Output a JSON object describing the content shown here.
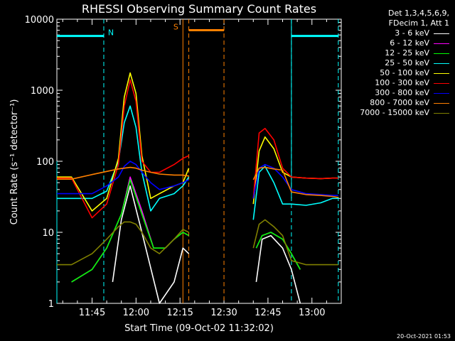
{
  "chart_data": {
    "type": "line",
    "title": "RHESSI Observing Summary Count Rates",
    "xlabel": "Start Time (09-Oct-02 11:32:02)",
    "ylabel": "Count Rate (s⁻¹ detector⁻¹)",
    "y_scale": "log",
    "ylim": [
      1,
      10000
    ],
    "xlim": [
      "11:33",
      "13:10"
    ],
    "x_tick_labels": [
      "11:45",
      "12:00",
      "12:15",
      "12:30",
      "12:45",
      "13:00"
    ],
    "y_tick_labels": [
      "1",
      "10",
      "100",
      "1000",
      "10000"
    ],
    "legend_title": "Det 1,3,4,5,6,9,\nFDecim 1, Att 1",
    "legend_position": "right",
    "series": [
      {
        "name": "3 - 6 keV",
        "color": "#ffffff",
        "x": [
          "11:33",
          "11:42",
          "11:52",
          "11:55",
          "11:58",
          "12:02",
          "12:08",
          "12:13",
          "12:16",
          "12:18",
          "12:19",
          "12:38",
          "12:41",
          "12:43",
          "12:46",
          "12:50",
          "12:53",
          "12:56",
          "13:10"
        ],
        "y": [
          null,
          null,
          2,
          15,
          45,
          10,
          1,
          2,
          6,
          5,
          null,
          null,
          2,
          8,
          9,
          6,
          3,
          1,
          null
        ]
      },
      {
        "name": "6 - 12 keV",
        "color": "#ff00ff",
        "x": [
          "11:33",
          "11:38",
          "11:45",
          "11:50",
          "11:55",
          "11:58",
          "12:02",
          "12:06",
          "12:10",
          "12:13",
          "12:16",
          "12:18",
          "12:19",
          "12:38",
          "12:41",
          "12:43",
          "12:46",
          "12:50",
          "12:53",
          "12:56",
          "13:10"
        ],
        "y": [
          null,
          2,
          3,
          6,
          18,
          60,
          20,
          6,
          6,
          8,
          10,
          9,
          null,
          null,
          6,
          9,
          10,
          8,
          5,
          3,
          null
        ]
      },
      {
        "name": "12 - 25 keV",
        "color": "#00ff00",
        "x": [
          "11:33",
          "11:38",
          "11:45",
          "11:50",
          "11:55",
          "11:58",
          "12:02",
          "12:06",
          "12:10",
          "12:13",
          "12:16",
          "12:18",
          "12:19",
          "12:38",
          "12:41",
          "12:43",
          "12:46",
          "12:50",
          "12:53",
          "12:56",
          "13:10"
        ],
        "y": [
          null,
          2,
          3,
          6,
          18,
          55,
          18,
          6,
          6,
          8,
          10,
          9,
          null,
          null,
          6,
          9,
          10,
          8,
          5,
          3,
          null
        ]
      },
      {
        "name": "25 - 50 keV",
        "color": "#00ffff",
        "x": [
          "11:33",
          "11:38",
          "11:45",
          "11:50",
          "11:54",
          "11:56",
          "11:58",
          "12:00",
          "12:02",
          "12:05",
          "12:08",
          "12:13",
          "12:16",
          "12:18",
          "12:19",
          "12:38",
          "12:40",
          "12:42",
          "12:44",
          "12:47",
          "12:50",
          "12:53",
          "12:58",
          "13:03",
          "13:07",
          "13:09"
        ],
        "y": [
          30,
          30,
          30,
          38,
          100,
          350,
          600,
          300,
          70,
          20,
          30,
          35,
          45,
          60,
          null,
          null,
          15,
          70,
          85,
          50,
          25,
          25,
          24,
          26,
          30,
          30
        ]
      },
      {
        "name": "50 - 100 keV",
        "color": "#ffff00",
        "x": [
          "11:33",
          "11:38",
          "11:45",
          "11:50",
          "11:54",
          "11:56",
          "11:58",
          "12:00",
          "12:02",
          "12:05",
          "12:08",
          "12:13",
          "12:16",
          "12:18",
          "12:19",
          "12:38",
          "12:40",
          "12:42",
          "12:44",
          "12:47",
          "12:50",
          "12:53",
          "12:58",
          "13:03",
          "13:07",
          "13:09"
        ],
        "y": [
          60,
          60,
          20,
          30,
          110,
          800,
          1750,
          900,
          120,
          30,
          35,
          45,
          50,
          80,
          null,
          null,
          25,
          140,
          220,
          150,
          70,
          60,
          58,
          57,
          58,
          58
        ]
      },
      {
        "name": "100 - 300 keV",
        "color": "#ff0000",
        "x": [
          "11:33",
          "11:38",
          "11:45",
          "11:50",
          "11:54",
          "11:56",
          "11:58",
          "12:00",
          "12:02",
          "12:05",
          "12:08",
          "12:13",
          "12:16",
          "12:18",
          "12:19",
          "12:38",
          "12:40",
          "12:42",
          "12:44",
          "12:47",
          "12:50",
          "12:53",
          "12:58",
          "13:03",
          "13:07",
          "13:09"
        ],
        "y": [
          58,
          58,
          16,
          25,
          90,
          600,
          1400,
          700,
          100,
          70,
          70,
          90,
          110,
          120,
          null,
          null,
          30,
          250,
          290,
          200,
          80,
          60,
          58,
          57,
          58,
          58
        ]
      },
      {
        "name": "300 - 800 keV",
        "color": "#0000ff",
        "x": [
          "11:33",
          "11:38",
          "11:45",
          "11:50",
          "11:54",
          "11:56",
          "11:58",
          "12:00",
          "12:02",
          "12:05",
          "12:08",
          "12:13",
          "12:16",
          "12:18",
          "12:19",
          "12:38",
          "12:40",
          "12:42",
          "12:44",
          "12:47",
          "12:50",
          "12:53",
          "12:58",
          "13:03",
          "13:07",
          "13:09"
        ],
        "y": [
          35,
          35,
          35,
          45,
          60,
          85,
          100,
          90,
          70,
          50,
          40,
          45,
          50,
          55,
          null,
          null,
          30,
          80,
          90,
          80,
          60,
          40,
          35,
          34,
          33,
          33
        ]
      },
      {
        "name": "800 - 7000 keV",
        "color": "#ff8000",
        "x": [
          "11:33",
          "11:38",
          "11:45",
          "11:50",
          "11:54",
          "11:56",
          "11:58",
          "12:00",
          "12:02",
          "12:05",
          "12:08",
          "12:13",
          "12:16",
          "12:18",
          "12:19",
          "12:38",
          "12:40",
          "12:42",
          "12:44",
          "12:47",
          "12:50",
          "12:53",
          "12:58",
          "13:03",
          "13:07",
          "13:09"
        ],
        "y": [
          56,
          56,
          65,
          72,
          78,
          80,
          82,
          80,
          75,
          70,
          66,
          64,
          64,
          62,
          null,
          null,
          55,
          80,
          82,
          78,
          75,
          37,
          34,
          33,
          32,
          31
        ]
      },
      {
        "name": "7000 - 15000 keV",
        "color": "#808000",
        "x": [
          "11:33",
          "11:38",
          "11:45",
          "11:50",
          "11:54",
          "11:56",
          "11:58",
          "12:00",
          "12:02",
          "12:05",
          "12:08",
          "12:13",
          "12:16",
          "12:18",
          "12:19",
          "12:38",
          "12:40",
          "12:42",
          "12:44",
          "12:47",
          "12:50",
          "12:53",
          "12:58",
          "13:03",
          "13:07",
          "13:09"
        ],
        "y": [
          3.5,
          3.5,
          5,
          8,
          12,
          14,
          14,
          13,
          10,
          6,
          5,
          8,
          11,
          10,
          null,
          null,
          6,
          13,
          15,
          12,
          9,
          4,
          3.5,
          3.5,
          3.5,
          3.5
        ]
      }
    ],
    "annotations": [
      {
        "label": "N",
        "color": "#00ffff",
        "type": "night"
      },
      {
        "label": "S",
        "color": "#ff8000",
        "type": "saa"
      }
    ],
    "markers": {
      "night": {
        "color": "#00ffff",
        "level": 5800,
        "intervals": [
          [
            "11:33",
            "11:49"
          ],
          [
            "12:53",
            "13:09"
          ]
        ],
        "lines": [
          "11:49",
          "12:53",
          "13:09"
        ]
      },
      "saa": {
        "color": "#ff8000",
        "level": 7000,
        "intervals": [
          [
            "12:18",
            "12:30"
          ]
        ],
        "lines": [
          "12:16",
          "12:18",
          "12:30"
        ]
      }
    }
  },
  "footer": {
    "timestamp": "20-Oct-2021 01:53"
  }
}
